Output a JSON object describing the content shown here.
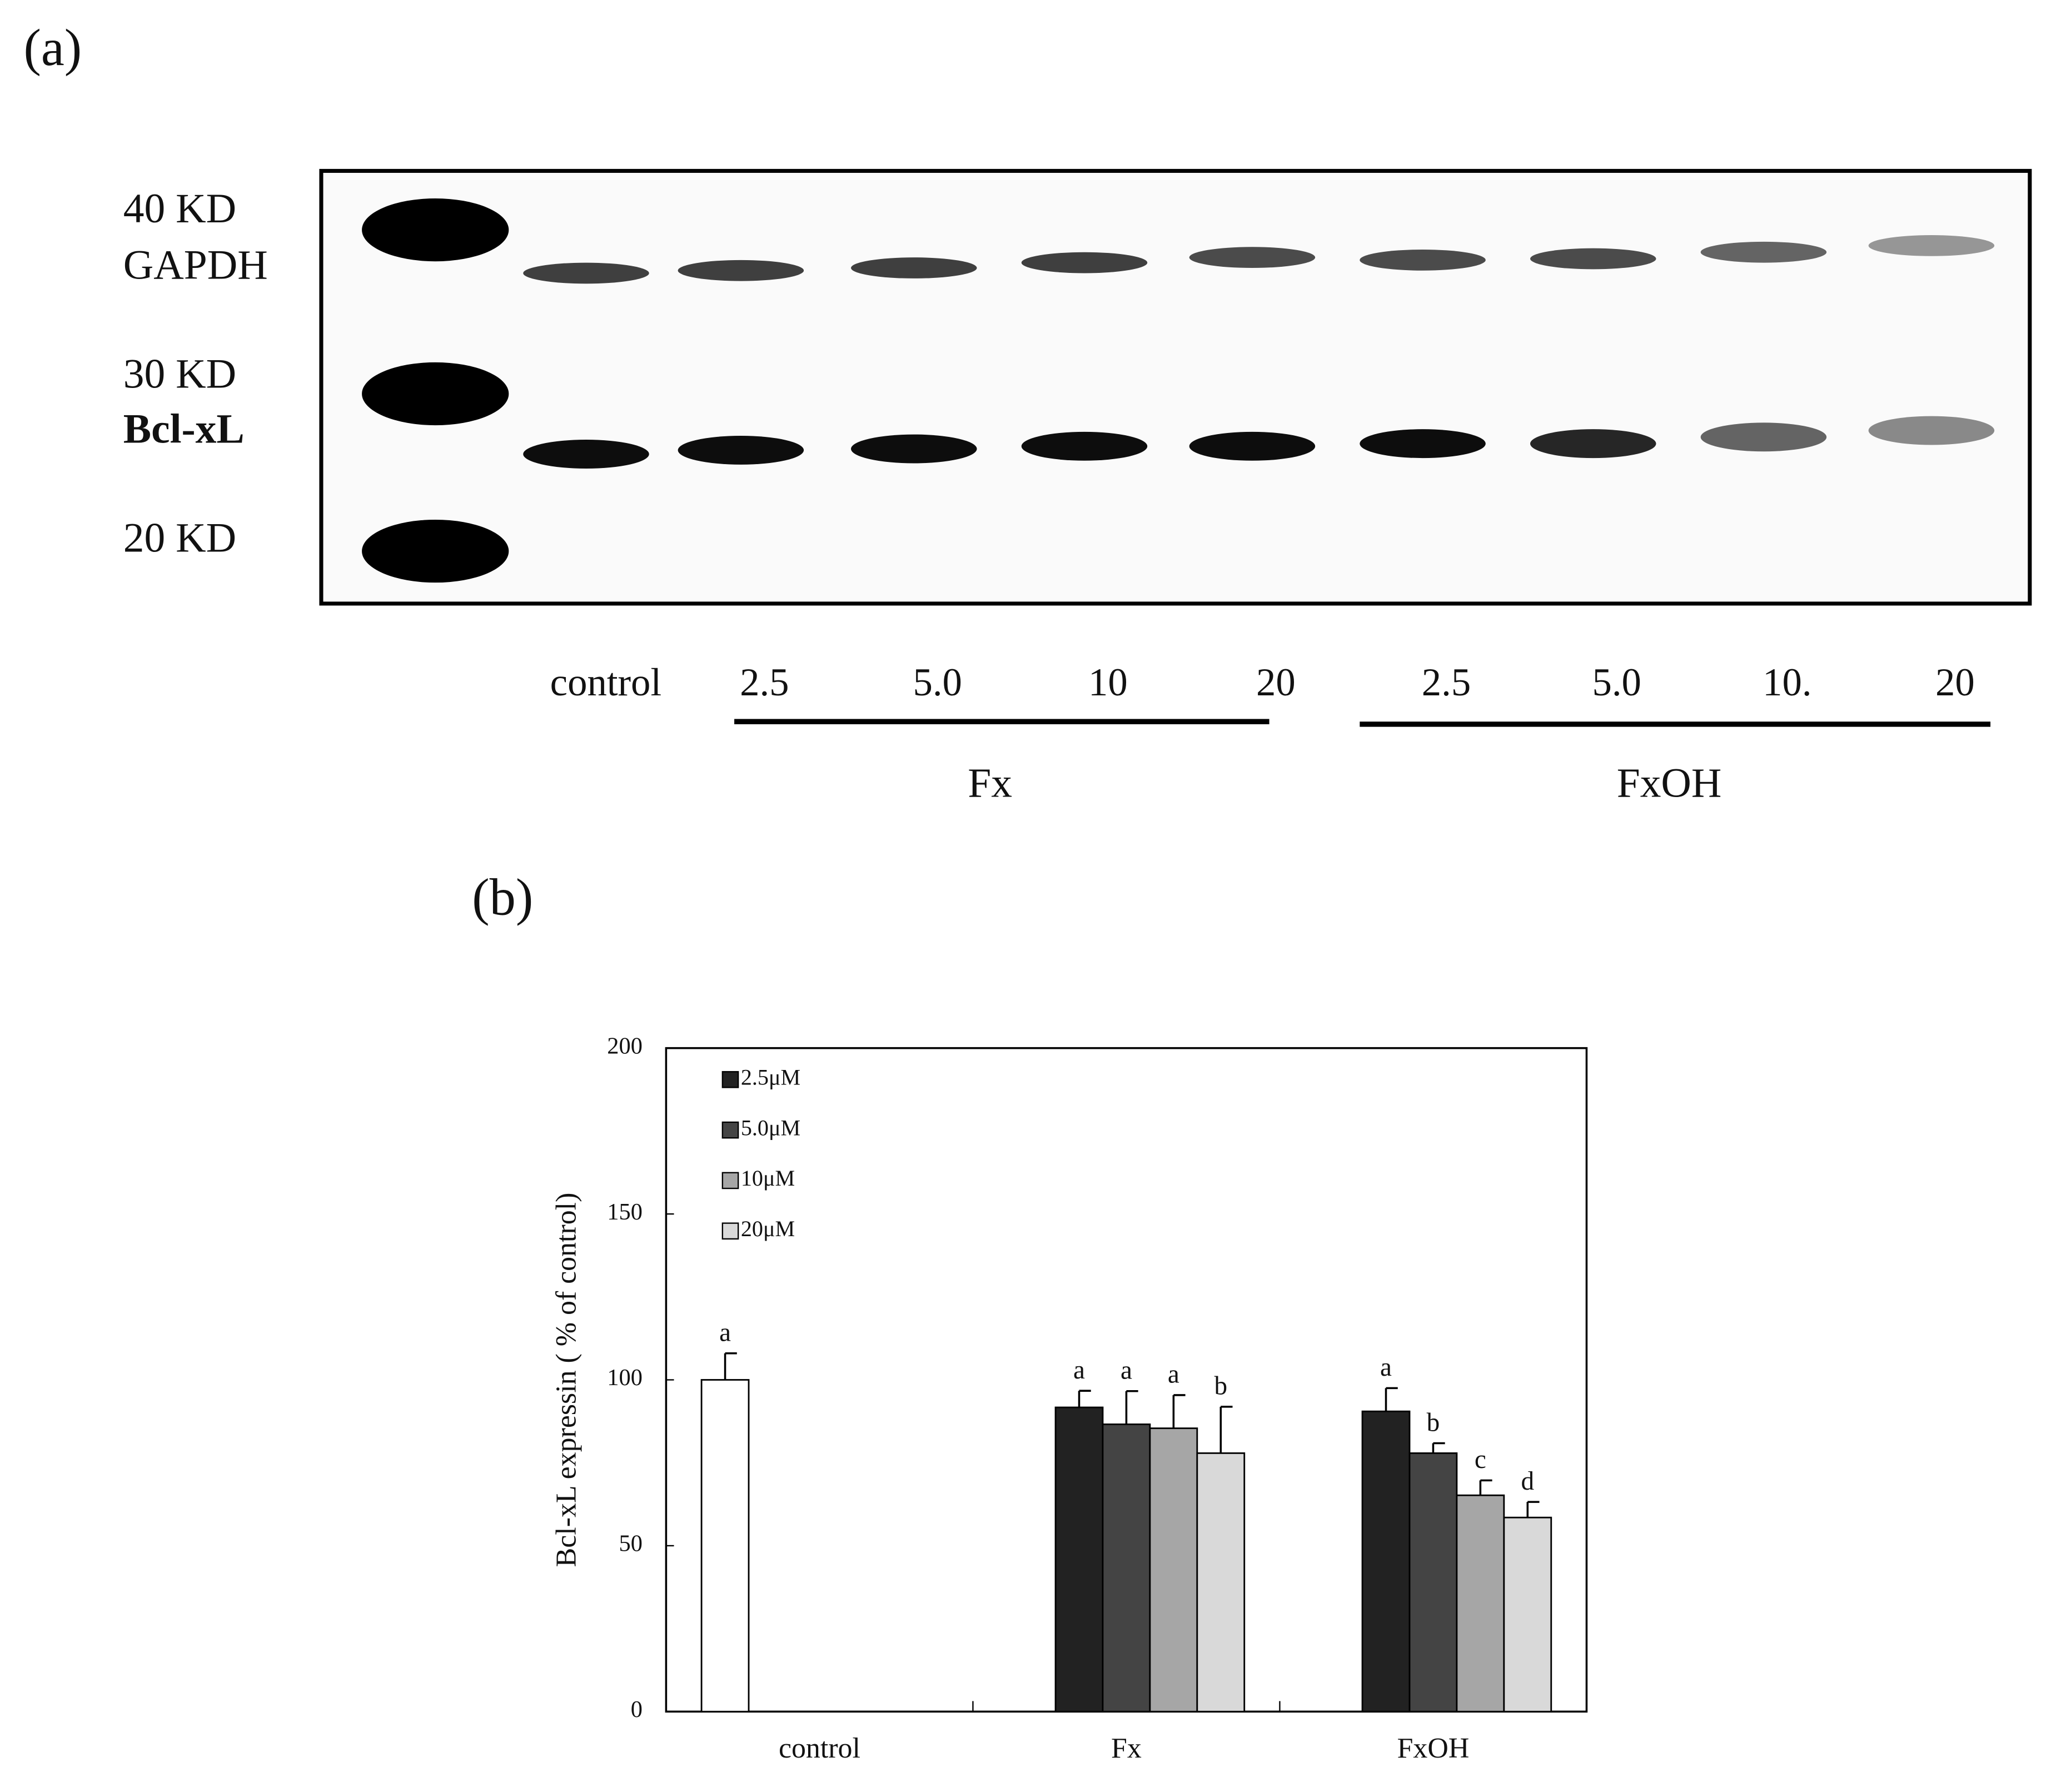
{
  "panel_a": {
    "label": "(a)",
    "markers": [
      "40 KD",
      "GAPDH",
      "30 KD",
      "Bcl-xL",
      "20 KD"
    ],
    "lanes": [
      "control",
      "2.5",
      "5.0",
      "10",
      "20",
      "2.5",
      "5.0",
      "10.",
      "20"
    ],
    "groups": [
      "Fx",
      "FxOH"
    ]
  },
  "panel_b": {
    "label": "(b)"
  },
  "chart_data": {
    "type": "bar",
    "ylabel": "Bcl-xL expressin ( % of control)",
    "categories": [
      "control",
      "Fx",
      "FxOH"
    ],
    "ylim": [
      0,
      200
    ],
    "yticks": [
      0,
      50,
      100,
      150,
      200
    ],
    "legend": "upper left",
    "series": [
      {
        "color": "#ffffff",
        "values": [
          100,
          null,
          null
        ],
        "errors": [
          8,
          null,
          null
        ],
        "letters": [
          "a",
          null,
          null
        ]
      },
      {
        "name": "2.5μM",
        "color": "#222222",
        "values": [
          null,
          91.7,
          90.5
        ],
        "errors": [
          null,
          5,
          7
        ],
        "letters": [
          null,
          "a",
          "a"
        ]
      },
      {
        "name": "5.0μM",
        "color": "#444444",
        "values": [
          null,
          86.6,
          77.9
        ],
        "errors": [
          null,
          10,
          3
        ],
        "letters": [
          null,
          "a",
          "b"
        ]
      },
      {
        "name": "10μM",
        "color": "#a6a6a6",
        "values": [
          null,
          85.4,
          65.2
        ],
        "errors": [
          null,
          10,
          4.5
        ],
        "letters": [
          null,
          "a",
          "c"
        ]
      },
      {
        "name": "20μM",
        "color": "#d9d9d9",
        "values": [
          null,
          77.9,
          58.5
        ],
        "errors": [
          null,
          14,
          4.7
        ],
        "letters": [
          null,
          "b",
          "d"
        ]
      }
    ]
  }
}
